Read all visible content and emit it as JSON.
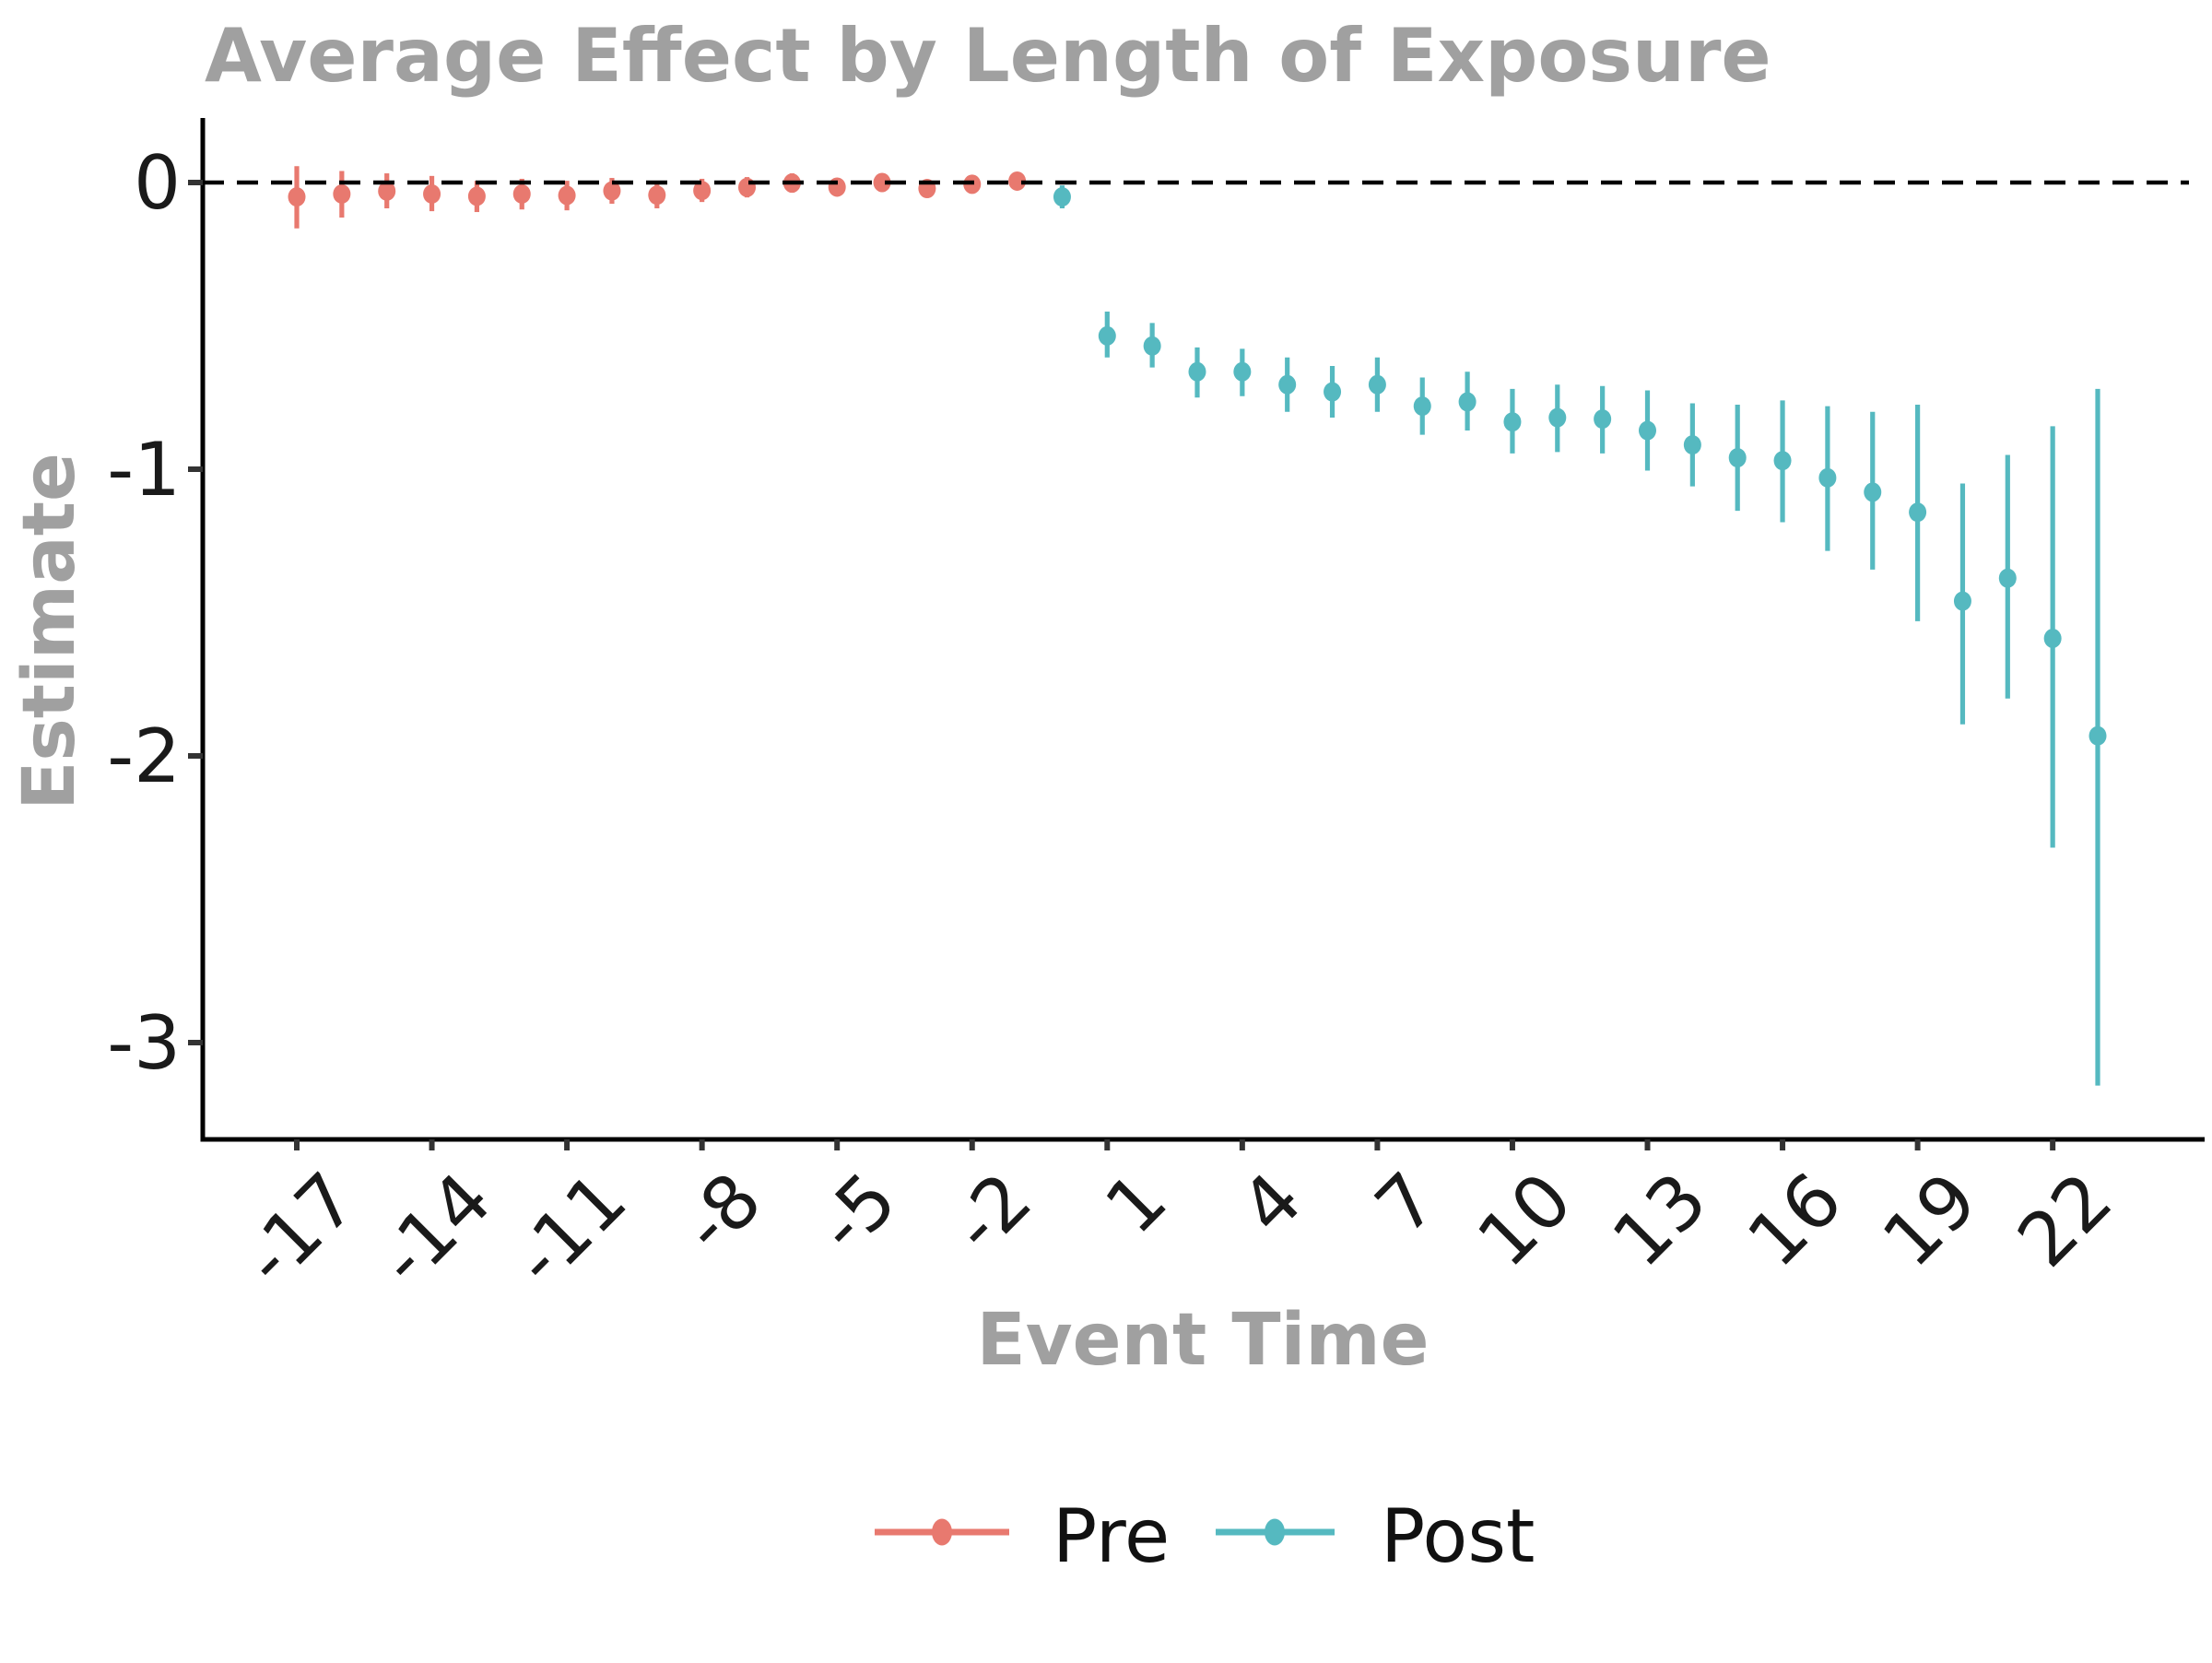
{
  "chart_data": {
    "type": "scatter",
    "title": "Average Effect by Length of Exposure",
    "xlabel": "Event Time",
    "ylabel": "Estimate",
    "x_ticks": [
      -17,
      -14,
      -11,
      -8,
      -5,
      -2,
      1,
      4,
      7,
      10,
      13,
      16,
      19,
      22
    ],
    "y_ticks": [
      0,
      -1,
      -2,
      -3
    ],
    "xlim": [
      -19.1,
      25.5
    ],
    "ylim": [
      -3.35,
      0.23
    ],
    "grid": false,
    "reference_line_y": 0,
    "legend_position": "bottom",
    "series": [
      {
        "name": "Pre",
        "color": "#E8796F",
        "points": [
          {
            "t": -17,
            "est": -0.05,
            "lo": -0.16,
            "hi": 0.057
          },
          {
            "t": -16,
            "est": -0.04,
            "lo": -0.122,
            "hi": 0.04
          },
          {
            "t": -15,
            "est": -0.03,
            "lo": -0.09,
            "hi": 0.032
          },
          {
            "t": -14,
            "est": -0.04,
            "lo": -0.1,
            "hi": 0.023
          },
          {
            "t": -13,
            "est": -0.048,
            "lo": -0.103,
            "hi": 0.006
          },
          {
            "t": -12,
            "est": -0.04,
            "lo": -0.094,
            "hi": 0.013
          },
          {
            "t": -11,
            "est": -0.045,
            "lo": -0.097,
            "hi": 0.006
          },
          {
            "t": -10,
            "est": -0.029,
            "lo": -0.074,
            "hi": 0.016
          },
          {
            "t": -9,
            "est": -0.044,
            "lo": -0.09,
            "hi": 0.003
          },
          {
            "t": -8,
            "est": -0.028,
            "lo": -0.068,
            "hi": 0.013
          },
          {
            "t": -7,
            "est": -0.017,
            "lo": -0.052,
            "hi": 0.019
          },
          {
            "t": -6,
            "est": -0.002,
            "lo": -0.035,
            "hi": 0.032
          },
          {
            "t": -5,
            "est": -0.016,
            "lo": -0.047,
            "hi": 0.016
          },
          {
            "t": -4,
            "est": 0.0,
            "lo": -0.029,
            "hi": 0.029
          },
          {
            "t": -3,
            "est": -0.021,
            "lo": -0.052,
            "hi": 0.01
          },
          {
            "t": -2,
            "est": -0.006,
            "lo": -0.035,
            "hi": 0.023
          },
          {
            "t": -1,
            "est": 0.005,
            "lo": -0.026,
            "hi": 0.037
          }
        ]
      },
      {
        "name": "Post",
        "color": "#55B9C0",
        "points": [
          {
            "t": 0,
            "est": -0.05,
            "lo": -0.09,
            "hi": -0.01
          },
          {
            "t": 1,
            "est": -0.535,
            "lo": -0.61,
            "hi": -0.45
          },
          {
            "t": 2,
            "est": -0.57,
            "lo": -0.645,
            "hi": -0.49
          },
          {
            "t": 3,
            "est": -0.66,
            "lo": -0.75,
            "hi": -0.575
          },
          {
            "t": 4,
            "est": -0.66,
            "lo": -0.745,
            "hi": -0.58
          },
          {
            "t": 5,
            "est": -0.705,
            "lo": -0.8,
            "hi": -0.61
          },
          {
            "t": 6,
            "est": -0.73,
            "lo": -0.82,
            "hi": -0.64
          },
          {
            "t": 7,
            "est": -0.705,
            "lo": -0.8,
            "hi": -0.61
          },
          {
            "t": 8,
            "est": -0.78,
            "lo": -0.88,
            "hi": -0.68
          },
          {
            "t": 9,
            "est": -0.765,
            "lo": -0.865,
            "hi": -0.66
          },
          {
            "t": 10,
            "est": -0.835,
            "lo": -0.945,
            "hi": -0.72
          },
          {
            "t": 11,
            "est": -0.82,
            "lo": -0.94,
            "hi": -0.705
          },
          {
            "t": 12,
            "est": -0.825,
            "lo": -0.945,
            "hi": -0.71
          },
          {
            "t": 13,
            "est": -0.865,
            "lo": -1.005,
            "hi": -0.725
          },
          {
            "t": 14,
            "est": -0.915,
            "lo": -1.06,
            "hi": -0.77
          },
          {
            "t": 15,
            "est": -0.96,
            "lo": -1.145,
            "hi": -0.775
          },
          {
            "t": 16,
            "est": -0.97,
            "lo": -1.185,
            "hi": -0.76
          },
          {
            "t": 17,
            "est": -1.03,
            "lo": -1.285,
            "hi": -0.78
          },
          {
            "t": 18,
            "est": -1.08,
            "lo": -1.35,
            "hi": -0.8
          },
          {
            "t": 19,
            "est": -1.15,
            "lo": -1.53,
            "hi": -0.775
          },
          {
            "t": 20,
            "est": -1.46,
            "lo": -1.89,
            "hi": -1.05
          },
          {
            "t": 21,
            "est": -1.38,
            "lo": -1.8,
            "hi": -0.95
          },
          {
            "t": 22,
            "est": -1.59,
            "lo": -2.32,
            "hi": -0.85
          },
          {
            "t": 23,
            "est": -1.93,
            "lo": -3.15,
            "hi": -0.72
          }
        ]
      }
    ]
  },
  "legend": {
    "items": [
      {
        "label": "Pre",
        "color": "#E8796F"
      },
      {
        "label": "Post",
        "color": "#55B9C0"
      }
    ]
  },
  "style": {
    "title_color": "#A0A0A0",
    "axis_label_color": "#A0A0A0",
    "tick_text_color": "#1A1A1A",
    "axis_line_color": "#000000",
    "tick_mark_color": "#333333",
    "reference_line_color": "#000000",
    "background_color": "#FFFFFF"
  }
}
